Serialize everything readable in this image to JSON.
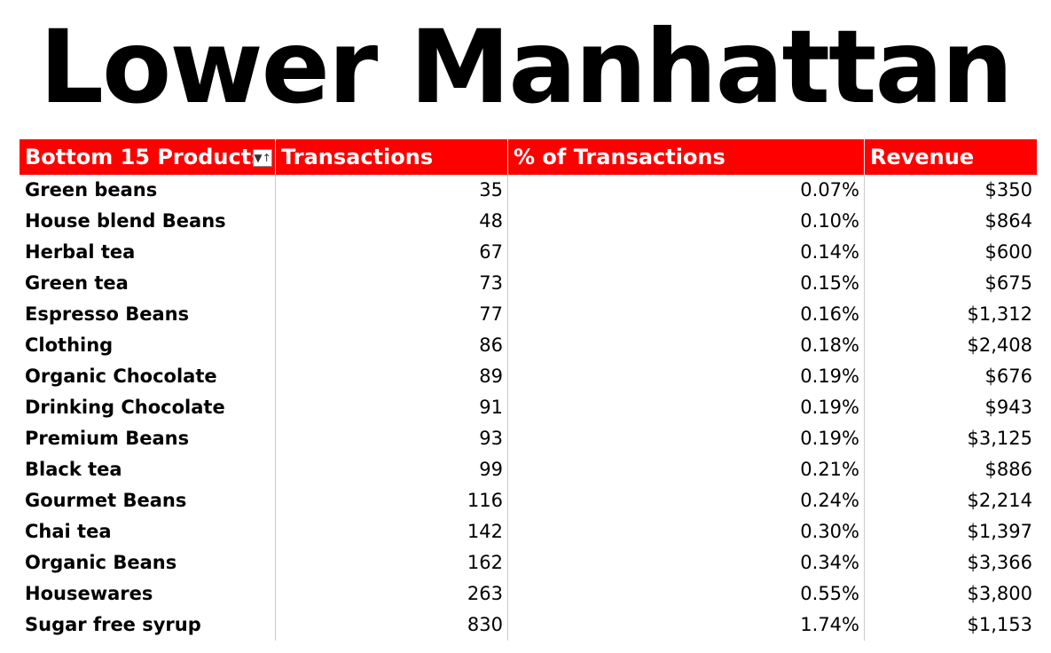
{
  "title": "Lower Manhattan",
  "table": {
    "headers": [
      "Bottom 15 Products",
      "Transactions",
      "% of Transactions",
      "Revenue"
    ],
    "filter_icon": "sort-filter-icon",
    "rows": [
      [
        "Green beans",
        "35",
        "0.07%",
        "$350"
      ],
      [
        "House blend Beans",
        "48",
        "0.10%",
        "$864"
      ],
      [
        "Herbal tea",
        "67",
        "0.14%",
        "$600"
      ],
      [
        "Green tea",
        "73",
        "0.15%",
        "$675"
      ],
      [
        "Espresso Beans",
        "77",
        "0.16%",
        "$1,312"
      ],
      [
        "Clothing",
        "86",
        "0.18%",
        "$2,408"
      ],
      [
        "Organic Chocolate",
        "89",
        "0.19%",
        "$676"
      ],
      [
        "Drinking Chocolate",
        "91",
        "0.19%",
        "$943"
      ],
      [
        "Premium Beans",
        "93",
        "0.19%",
        "$3,125"
      ],
      [
        "Black tea",
        "99",
        "0.21%",
        "$886"
      ],
      [
        "Gourmet Beans",
        "116",
        "0.24%",
        "$2,214"
      ],
      [
        "Chai tea",
        "142",
        "0.30%",
        "$1,397"
      ],
      [
        "Organic Beans",
        "162",
        "0.34%",
        "$3,366"
      ],
      [
        "Housewares",
        "263",
        "0.55%",
        "$3,800"
      ],
      [
        "Sugar free syrup",
        "830",
        "1.74%",
        "$1,153"
      ]
    ]
  },
  "colors": {
    "header_bg": "#ff0000",
    "header_text": "#ffffff"
  }
}
